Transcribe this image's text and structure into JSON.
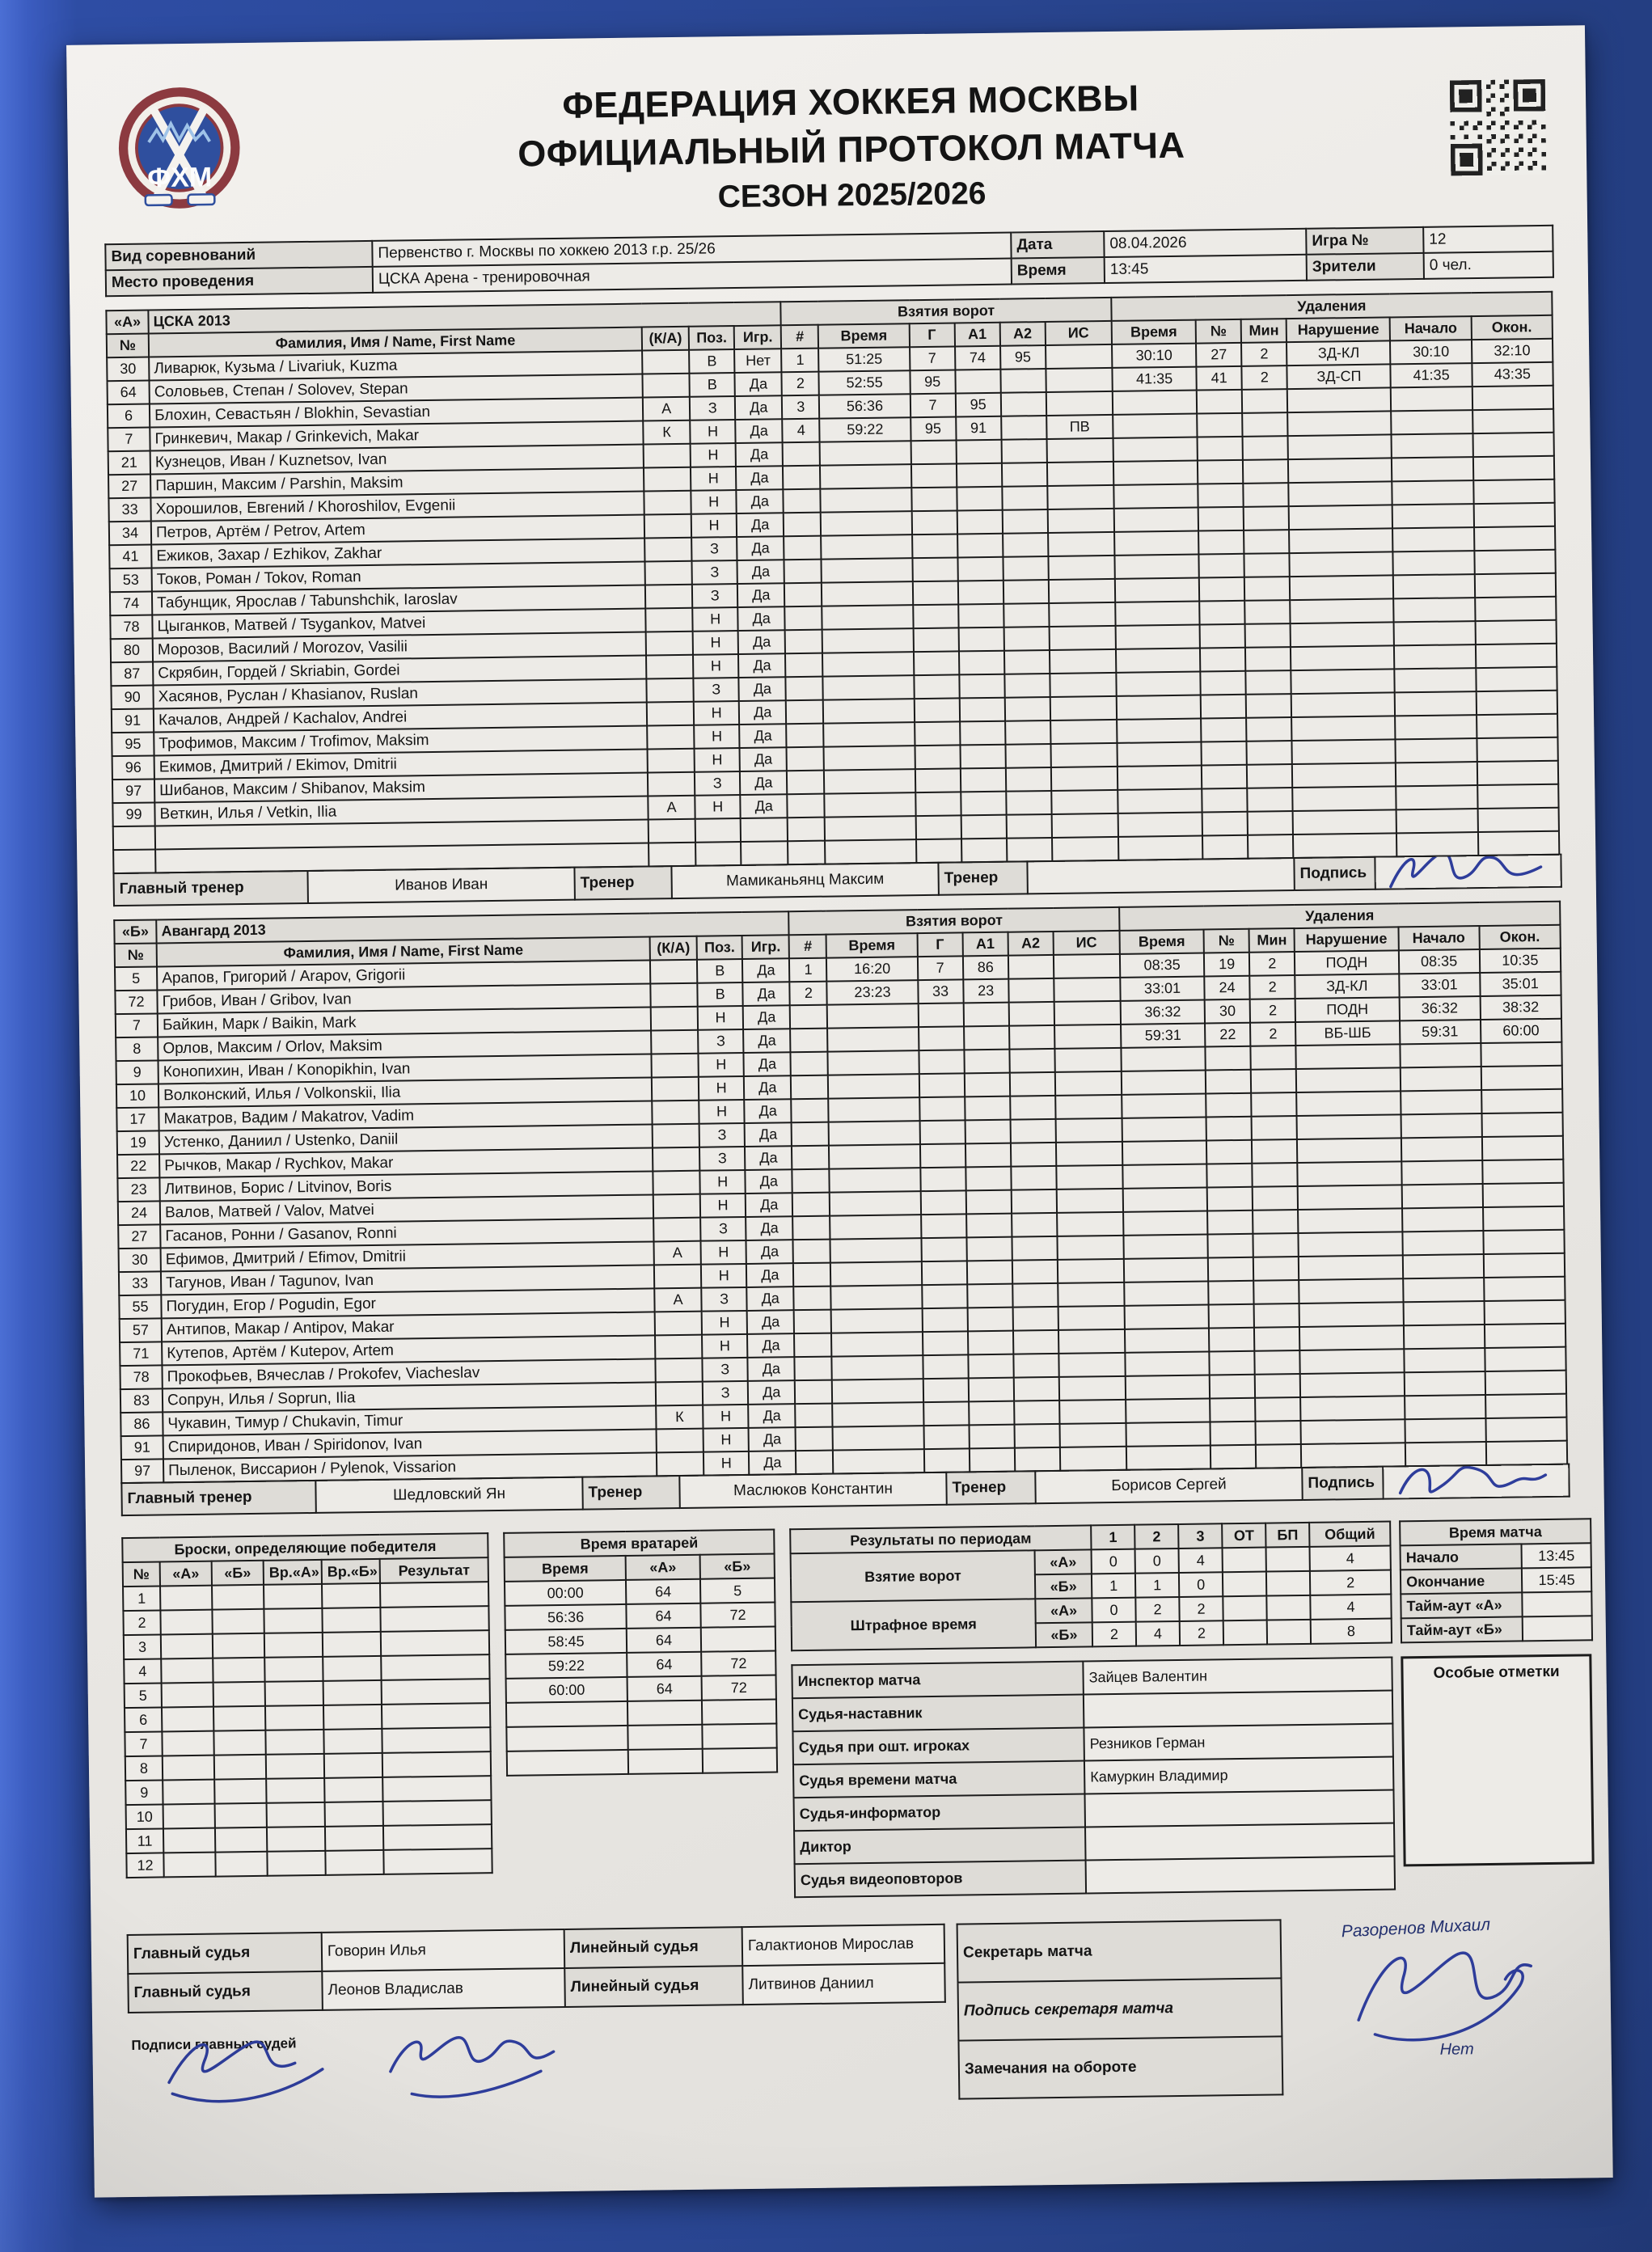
{
  "header": {
    "title1": "ФЕДЕРАЦИЯ ХОККЕЯ МОСКВЫ",
    "title2": "ОФИЦИАЛЬНЫЙ ПРОТОКОЛ МАТЧА",
    "title3": "СЕЗОН 2025/2026",
    "logo_text": "ФХМ"
  },
  "info": {
    "competition_label": "Вид соревнований",
    "competition_value": "Первенство г. Москвы по хоккею 2013 г.р. 25/26",
    "venue_label": "Место проведения",
    "venue_value": "ЦСКА Арена - тренировочная",
    "date_label": "Дата",
    "date_value": "08.04.2026",
    "time_label": "Время",
    "time_value": "13:45",
    "game_label": "Игра №",
    "game_value": "12",
    "spectators_label": "Зрители",
    "spectators_value": "0 чел."
  },
  "roster_columns": {
    "num": "№",
    "name": "Фамилия, Имя / Name, First Name",
    "ka": "(К/А)",
    "pos": "Поз.",
    "played": "Игр.",
    "goals_title": "Взятия ворот",
    "g_n": "#",
    "g_time": "Время",
    "g_g": "Г",
    "g_a1": "А1",
    "g_a2": "А2",
    "g_is": "ИС",
    "pen_title": "Удаления",
    "p_time": "Время",
    "p_num": "№",
    "p_min": "Мин",
    "p_viol": "Нарушение",
    "p_start": "Начало",
    "p_end": "Окон."
  },
  "coach_labels": {
    "head": "Главный тренер",
    "coach": "Тренер",
    "sign": "Подпись"
  },
  "team_a": {
    "code": "«А»",
    "name": "ЦСКА 2013",
    "head_coach": "Иванов Иван",
    "coach2": "Мамиканьянц Максим",
    "coach3": "",
    "empty_rows": 2,
    "players": [
      {
        "num": "30",
        "name": "Ливарюк, Кузьма / Livariuk, Kuzma",
        "ka": "",
        "pos": "В",
        "played": "Нет"
      },
      {
        "num": "64",
        "name": "Соловьев, Степан / Solovev, Stepan",
        "ka": "",
        "pos": "В",
        "played": "Да"
      },
      {
        "num": "6",
        "name": "Блохин, Севастьян / Blokhin, Sevastian",
        "ka": "А",
        "pos": "З",
        "played": "Да"
      },
      {
        "num": "7",
        "name": "Гринкевич, Макар / Grinkevich, Makar",
        "ka": "К",
        "pos": "Н",
        "played": "Да"
      },
      {
        "num": "21",
        "name": "Кузнецов, Иван / Kuznetsov, Ivan",
        "ka": "",
        "pos": "Н",
        "played": "Да"
      },
      {
        "num": "27",
        "name": "Паршин, Максим / Parshin, Maksim",
        "ka": "",
        "pos": "Н",
        "played": "Да"
      },
      {
        "num": "33",
        "name": "Хорошилов, Евгений / Khoroshilov, Evgenii",
        "ka": "",
        "pos": "Н",
        "played": "Да"
      },
      {
        "num": "34",
        "name": "Петров, Артём / Petrov, Artem",
        "ka": "",
        "pos": "Н",
        "played": "Да"
      },
      {
        "num": "41",
        "name": "Ежиков, Захар / Ezhikov, Zakhar",
        "ka": "",
        "pos": "З",
        "played": "Да"
      },
      {
        "num": "53",
        "name": "Токов, Роман / Tokov, Roman",
        "ka": "",
        "pos": "З",
        "played": "Да"
      },
      {
        "num": "74",
        "name": "Табунщик, Ярослав / Tabunshchik, Iaroslav",
        "ka": "",
        "pos": "З",
        "played": "Да"
      },
      {
        "num": "78",
        "name": "Цыганков, Матвей / Tsygankov, Matvei",
        "ka": "",
        "pos": "Н",
        "played": "Да"
      },
      {
        "num": "80",
        "name": "Морозов, Василий / Morozov, Vasilii",
        "ka": "",
        "pos": "Н",
        "played": "Да"
      },
      {
        "num": "87",
        "name": "Скрябин, Гордей / Skriabin, Gordei",
        "ka": "",
        "pos": "Н",
        "played": "Да"
      },
      {
        "num": "90",
        "name": "Хасянов, Руслан / Khasianov, Ruslan",
        "ka": "",
        "pos": "З",
        "played": "Да"
      },
      {
        "num": "91",
        "name": "Качалов, Андрей / Kachalov, Andrei",
        "ka": "",
        "pos": "Н",
        "played": "Да"
      },
      {
        "num": "95",
        "name": "Трофимов, Максим / Trofimov, Maksim",
        "ka": "",
        "pos": "Н",
        "played": "Да"
      },
      {
        "num": "96",
        "name": "Екимов, Дмитрий / Ekimov, Dmitrii",
        "ka": "",
        "pos": "Н",
        "played": "Да"
      },
      {
        "num": "97",
        "name": "Шибанов, Максим / Shibanov, Maksim",
        "ka": "",
        "pos": "З",
        "played": "Да"
      },
      {
        "num": "99",
        "name": "Веткин, Илья / Vetkin, Ilia",
        "ka": "А",
        "pos": "Н",
        "played": "Да"
      }
    ],
    "goals": [
      {
        "n": "1",
        "time": "51:25",
        "g": "7",
        "a1": "74",
        "a2": "95",
        "is": ""
      },
      {
        "n": "2",
        "time": "52:55",
        "g": "95",
        "a1": "",
        "a2": "",
        "is": ""
      },
      {
        "n": "3",
        "time": "56:36",
        "g": "7",
        "a1": "95",
        "a2": "",
        "is": ""
      },
      {
        "n": "4",
        "time": "59:22",
        "g": "95",
        "a1": "91",
        "a2": "",
        "is": "ПВ"
      }
    ],
    "penalties": [
      {
        "time": "30:10",
        "num": "27",
        "min": "2",
        "viol": "ЗД-КЛ",
        "start": "30:10",
        "end": "32:10"
      },
      {
        "time": "41:35",
        "num": "41",
        "min": "2",
        "viol": "ЗД-СП",
        "start": "41:35",
        "end": "43:35"
      }
    ]
  },
  "team_b": {
    "code": "«Б»",
    "name": "Авангард 2013",
    "head_coach": "Шедловский Ян",
    "coach2": "Маслюков Константин",
    "coach3": "Борисов Сергей",
    "empty_rows": 0,
    "players": [
      {
        "num": "5",
        "name": "Арапов, Григорий / Arapov, Grigorii",
        "ka": "",
        "pos": "В",
        "played": "Да"
      },
      {
        "num": "72",
        "name": "Грибов, Иван / Gribov, Ivan",
        "ka": "",
        "pos": "В",
        "played": "Да"
      },
      {
        "num": "7",
        "name": "Байкин, Марк / Baikin, Mark",
        "ka": "",
        "pos": "Н",
        "played": "Да"
      },
      {
        "num": "8",
        "name": "Орлов, Максим / Orlov, Maksim",
        "ka": "",
        "pos": "З",
        "played": "Да"
      },
      {
        "num": "9",
        "name": "Конопихин, Иван / Konopikhin, Ivan",
        "ka": "",
        "pos": "Н",
        "played": "Да"
      },
      {
        "num": "10",
        "name": "Волконский, Илья / Volkonskii, Ilia",
        "ka": "",
        "pos": "Н",
        "played": "Да"
      },
      {
        "num": "17",
        "name": "Макатров, Вадим / Makatrov, Vadim",
        "ka": "",
        "pos": "Н",
        "played": "Да"
      },
      {
        "num": "19",
        "name": "Устенко, Даниил / Ustenko, Daniil",
        "ka": "",
        "pos": "З",
        "played": "Да"
      },
      {
        "num": "22",
        "name": "Рычков, Макар / Rychkov, Makar",
        "ka": "",
        "pos": "З",
        "played": "Да"
      },
      {
        "num": "23",
        "name": "Литвинов, Борис / Litvinov, Boris",
        "ka": "",
        "pos": "Н",
        "played": "Да"
      },
      {
        "num": "24",
        "name": "Валов, Матвей / Valov, Matvei",
        "ka": "",
        "pos": "Н",
        "played": "Да"
      },
      {
        "num": "27",
        "name": "Гасанов, Ронни / Gasanov, Ronni",
        "ka": "",
        "pos": "З",
        "played": "Да"
      },
      {
        "num": "30",
        "name": "Ефимов, Дмитрий / Efimov, Dmitrii",
        "ka": "А",
        "pos": "Н",
        "played": "Да"
      },
      {
        "num": "33",
        "name": "Тагунов, Иван / Tagunov, Ivan",
        "ka": "",
        "pos": "Н",
        "played": "Да"
      },
      {
        "num": "55",
        "name": "Погудин, Егор / Pogudin, Egor",
        "ka": "А",
        "pos": "З",
        "played": "Да"
      },
      {
        "num": "57",
        "name": "Антипов, Макар / Antipov, Makar",
        "ka": "",
        "pos": "Н",
        "played": "Да"
      },
      {
        "num": "71",
        "name": "Кутепов, Артём / Kutepov, Artem",
        "ka": "",
        "pos": "Н",
        "played": "Да"
      },
      {
        "num": "78",
        "name": "Прокофьев, Вячеслав / Prokofev, Viacheslav",
        "ka": "",
        "pos": "З",
        "played": "Да"
      },
      {
        "num": "83",
        "name": "Сопрун, Илья / Soprun, Ilia",
        "ka": "",
        "pos": "З",
        "played": "Да"
      },
      {
        "num": "86",
        "name": "Чукавин, Тимур / Chukavin, Timur",
        "ka": "К",
        "pos": "Н",
        "played": "Да"
      },
      {
        "num": "91",
        "name": "Спиридонов, Иван / Spiridonov, Ivan",
        "ka": "",
        "pos": "Н",
        "played": "Да"
      },
      {
        "num": "97",
        "name": "Пыленок, Виссарион / Pylenok, Vissarion",
        "ka": "",
        "pos": "Н",
        "played": "Да"
      }
    ],
    "goals": [
      {
        "n": "1",
        "time": "16:20",
        "g": "7",
        "a1": "86",
        "a2": "",
        "is": ""
      },
      {
        "n": "2",
        "time": "23:23",
        "g": "33",
        "a1": "23",
        "a2": "",
        "is": ""
      }
    ],
    "penalties": [
      {
        "time": "08:35",
        "num": "19",
        "min": "2",
        "viol": "ПОДН",
        "start": "08:35",
        "end": "10:35"
      },
      {
        "time": "33:01",
        "num": "24",
        "min": "2",
        "viol": "ЗД-КЛ",
        "start": "33:01",
        "end": "35:01"
      },
      {
        "time": "36:32",
        "num": "30",
        "min": "2",
        "viol": "ПОДН",
        "start": "36:32",
        "end": "38:32"
      },
      {
        "time": "59:31",
        "num": "22",
        "min": "2",
        "viol": "ВБ-ШБ",
        "start": "59:31",
        "end": "60:00"
      }
    ]
  },
  "shootout": {
    "title": "Броски, определяющие победителя",
    "columns": [
      "№",
      "«А»",
      "«Б»",
      "Вр.«А»",
      "Вр.«Б»",
      "Результат"
    ],
    "row_numbers": [
      "1",
      "2",
      "3",
      "4",
      "5",
      "6",
      "7",
      "8",
      "9",
      "10",
      "11",
      "12"
    ]
  },
  "goalie_times": {
    "title": "Время вратарей",
    "columns": [
      "Время",
      "«А»",
      "«Б»"
    ],
    "rows": [
      [
        "00:00",
        "64",
        "5"
      ],
      [
        "56:36",
        "64",
        "72"
      ],
      [
        "58:45",
        "64",
        ""
      ],
      [
        "59:22",
        "64",
        "72"
      ],
      [
        "60:00",
        "64",
        "72"
      ],
      [
        "",
        "",
        ""
      ],
      [
        "",
        "",
        ""
      ],
      [
        "",
        "",
        ""
      ]
    ]
  },
  "period_results": {
    "title": "Результаты по периодам",
    "period_columns": [
      "1",
      "2",
      "3",
      "ОТ",
      "БП",
      "Общий"
    ],
    "sections": [
      {
        "label": "Взятие ворот",
        "rows": [
          {
            "team": "«А»",
            "values": [
              "0",
              "0",
              "4",
              "",
              "",
              "4"
            ]
          },
          {
            "team": "«Б»",
            "values": [
              "1",
              "1",
              "0",
              "",
              "",
              "2"
            ]
          }
        ]
      },
      {
        "label": "Штрафное время",
        "rows": [
          {
            "team": "«А»",
            "values": [
              "0",
              "2",
              "2",
              "",
              "",
              "4"
            ]
          },
          {
            "team": "«Б»",
            "values": [
              "2",
              "4",
              "2",
              "",
              "",
              "8"
            ]
          }
        ]
      }
    ]
  },
  "match_time": {
    "title": "Время матча",
    "rows": [
      [
        "Начало",
        "13:45"
      ],
      [
        "Окончание",
        "15:45"
      ],
      [
        "Тайм-аут «А»",
        ""
      ],
      [
        "Тайм-аут «Б»",
        ""
      ]
    ]
  },
  "officials": {
    "rows": [
      [
        "Инспектор матча",
        "Зайцев Валентин"
      ],
      [
        "Судья-наставник",
        ""
      ],
      [
        "Судья при ошт. игроках",
        "Резников Герман"
      ],
      [
        "Судья времени матча",
        "Камуркин Владимир"
      ],
      [
        "Судья-информатор",
        ""
      ],
      [
        "Диктор",
        ""
      ],
      [
        "Судья видеоповторов",
        ""
      ]
    ]
  },
  "special_marks": {
    "title": "Особые отметки"
  },
  "footer": {
    "referees": [
      [
        "Главный судья",
        "Говорин Илья",
        "Линейный судья",
        "Галактионов Мирослав"
      ],
      [
        "Главный судья",
        "Леонов Владислав",
        "Линейный судья",
        "Литвинов Даниил"
      ]
    ],
    "secretary_label": "Секретарь матча",
    "secretary_name": "Разоренов Михаил",
    "secretary_sign_label": "Подпись секретаря матча",
    "remarks_label": "Замечания на обороте",
    "remarks_value": "Нет",
    "judges_sign_label": "Подписи главных судей"
  }
}
